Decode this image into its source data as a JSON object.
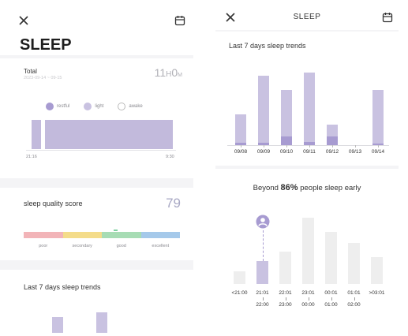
{
  "left": {
    "title": "SLEEP",
    "total": {
      "label": "Total",
      "sub": "2023-09-14 ~ 09-15",
      "value_num1": "11",
      "value_unit1": "H",
      "value_num2": "0",
      "value_unit2": "M"
    },
    "legend": [
      "restful",
      "light",
      "awake"
    ],
    "time_start": "21:16",
    "time_end": "9:30",
    "score": {
      "label": "sleep quality score",
      "value": "79",
      "categories": [
        "poor",
        "secondary",
        "good",
        "excellent"
      ]
    },
    "trend_title": "Last 7 days sleep trends"
  },
  "right": {
    "header": "SLEEP",
    "trend_title": "Last 7 days sleep trends",
    "trend_chart": {
      "dates": [
        "09/08",
        "09/09",
        "09/10",
        "09/11",
        "09/12",
        "09/13",
        "09/14"
      ],
      "total": [
        0.44,
        1.0,
        0.79,
        1.05,
        0.29,
        0,
        0.79
      ],
      "deep": [
        0.03,
        0.03,
        0.12,
        0.05,
        0.12,
        0,
        0.02
      ]
    },
    "beyond": {
      "prefix": "Beyond ",
      "percent": "86%",
      "suffix": " people sleep early"
    },
    "early_chart": {
      "labels_top": [
        "<21:00",
        "21:01",
        "22:01",
        "23:01",
        "00:01",
        "01:01",
        ">03:01"
      ],
      "labels_bottom": [
        "",
        "22:00",
        "23:00",
        "00:00",
        "01:00",
        "02:00",
        ""
      ],
      "values": [
        0.13,
        0.24,
        0.34,
        0.7,
        0.55,
        0.43,
        0.28
      ],
      "highlight_index": 1
    },
    "colors": {
      "accent": "#a79bd1",
      "light": "#c9c2e1"
    }
  }
}
